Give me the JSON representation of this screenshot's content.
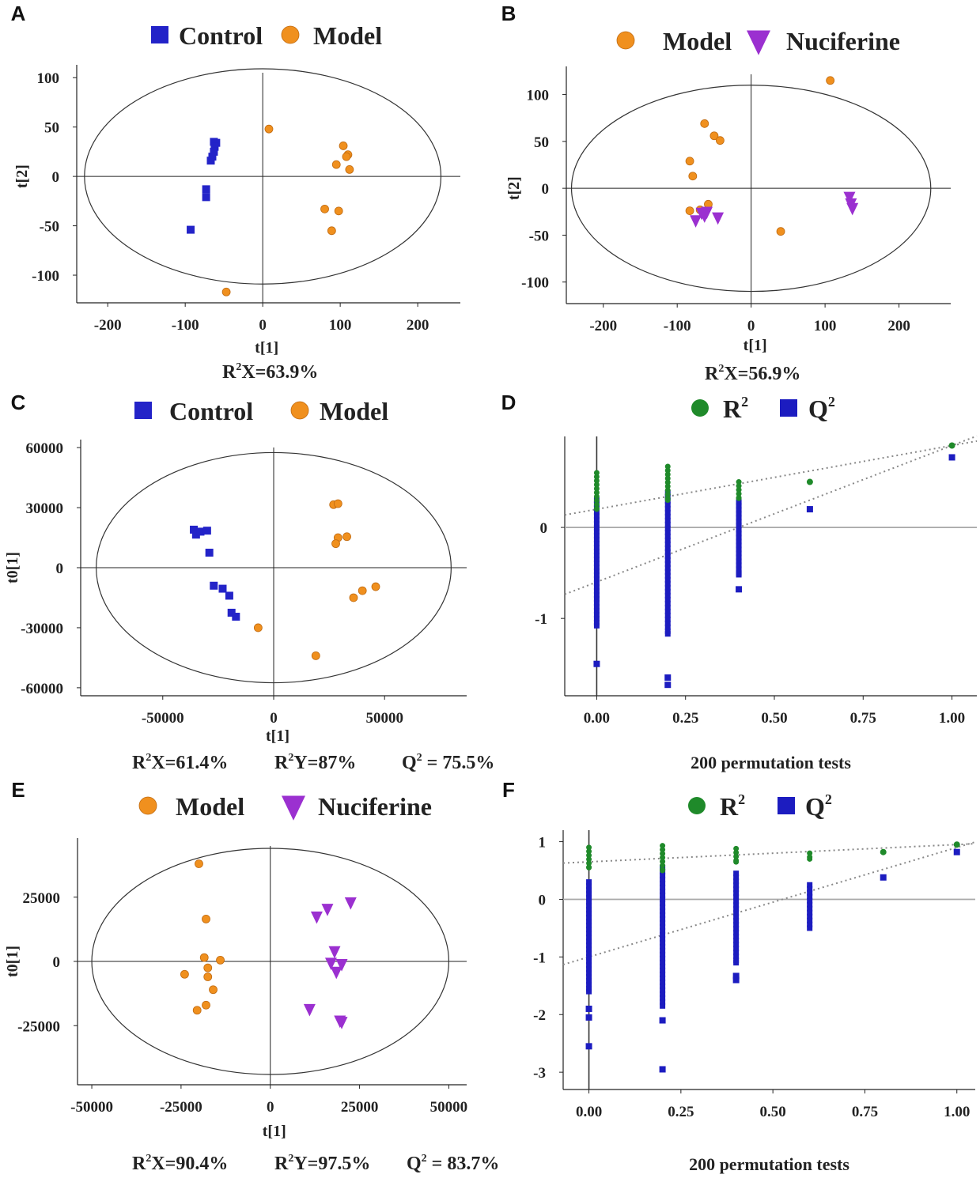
{
  "colors": {
    "control": "#2323c8",
    "model": "#f0901e",
    "nuciferine": "#9b30d0",
    "r2": "#1f8a2a",
    "q2": "#1c1cc0",
    "axis": "#222222",
    "gridline": "#a8a8a8",
    "dotted": "#888888"
  },
  "chart_data": [
    {
      "panel": "A",
      "type": "scatter",
      "legend": [
        {
          "label": "Control",
          "marker": "square",
          "color_key": "control"
        },
        {
          "label": "Model",
          "marker": "circle",
          "color_key": "model"
        }
      ],
      "xlabel": "t[1]",
      "ylabel": "t[2]",
      "xlim": [
        -240,
        255
      ],
      "ylim": [
        -128,
        113
      ],
      "xticks": [
        -200,
        -100,
        0,
        100,
        200
      ],
      "xtick_labels": [
        "-200",
        "-100",
        "0",
        "100",
        "200"
      ],
      "yticks": [
        100,
        50,
        0,
        -50,
        -100
      ],
      "ytick_labels": [
        "100",
        "50",
        "0",
        "-50",
        "-100"
      ],
      "ellipse": {
        "rx": 230,
        "ry": 109
      },
      "caption": [
        {
          "text": "R",
          "sup": "2",
          "rest": "X=63.9%"
        }
      ],
      "series": [
        {
          "name": "Control",
          "marker": "square",
          "color_key": "control",
          "points": [
            [
              -63,
              35
            ],
            [
              -60,
              34
            ],
            [
              -62,
              30
            ],
            [
              -63,
              25
            ],
            [
              -65,
              20
            ],
            [
              -67,
              16
            ],
            [
              -73,
              -13
            ],
            [
              -73,
              -21
            ],
            [
              -93,
              -54
            ]
          ]
        },
        {
          "name": "Model",
          "marker": "circle",
          "color_key": "model",
          "points": [
            [
              8,
              48
            ],
            [
              104,
              31
            ],
            [
              110,
              22
            ],
            [
              108,
              20
            ],
            [
              95,
              12
            ],
            [
              112,
              7
            ],
            [
              80,
              -33
            ],
            [
              98,
              -35
            ],
            [
              89,
              -55
            ],
            [
              -47,
              -117
            ]
          ]
        }
      ]
    },
    {
      "panel": "B",
      "type": "scatter",
      "legend": [
        {
          "label": "Model",
          "marker": "circle",
          "color_key": "model"
        },
        {
          "label": "Nuciferine",
          "marker": "triangle",
          "color_key": "nuciferine"
        }
      ],
      "xlabel": "t[1]",
      "ylabel": "t[2]",
      "xlim": [
        -250,
        270
      ],
      "ylim": [
        -123,
        130
      ],
      "xticks": [
        -200,
        -100,
        0,
        100,
        200
      ],
      "xtick_labels": [
        "-200",
        "-100",
        "0",
        "100",
        "200"
      ],
      "yticks": [
        100,
        50,
        0,
        -50,
        -100
      ],
      "ytick_labels": [
        "100",
        "50",
        "0",
        "-50",
        "-100"
      ],
      "ellipse": {
        "rx": 243,
        "ry": 110
      },
      "caption": [
        {
          "text": "R",
          "sup": "2",
          "rest": "X=56.9%"
        }
      ],
      "series": [
        {
          "name": "Model",
          "marker": "circle",
          "color_key": "model",
          "points": [
            [
              107,
              115
            ],
            [
              -63,
              69
            ],
            [
              -50,
              56
            ],
            [
              -42,
              51
            ],
            [
              -83,
              29
            ],
            [
              -79,
              13
            ],
            [
              -58,
              -17
            ],
            [
              -83,
              -24
            ],
            [
              -69,
              -23
            ],
            [
              40,
              -46
            ]
          ]
        },
        {
          "name": "Nuciferine",
          "marker": "triangle",
          "color_key": "nuciferine",
          "points": [
            [
              133,
              -9
            ],
            [
              135,
              -16
            ],
            [
              137,
              -21
            ],
            [
              -60,
              -25
            ],
            [
              -67,
              -26
            ],
            [
              -45,
              -31
            ],
            [
              -75,
              -34
            ],
            [
              -63,
              -29
            ]
          ]
        }
      ]
    },
    {
      "panel": "C",
      "type": "scatter",
      "legend": [
        {
          "label": "Control",
          "marker": "square",
          "color_key": "control"
        },
        {
          "label": "Model",
          "marker": "circle",
          "color_key": "model"
        }
      ],
      "xlabel": "t[1]",
      "ylabel": "t0[1]",
      "xlim": [
        -87000,
        87000
      ],
      "ylim": [
        -64000,
        64000
      ],
      "xticks": [
        -50000,
        0,
        50000
      ],
      "xtick_labels": [
        "-50000",
        "0",
        "50000"
      ],
      "yticks": [
        60000,
        30000,
        0,
        -30000,
        -60000
      ],
      "ytick_labels": [
        "60000",
        "30000",
        "0",
        "-30000",
        "-60000"
      ],
      "ellipse": {
        "rx": 80000,
        "ry": 57500
      },
      "caption": [
        {
          "text": "R",
          "sup": "2",
          "rest": "X=61.4%"
        },
        {
          "text": "R",
          "sup": "2",
          "rest": "Y=87%"
        },
        {
          "text": "Q",
          "sup": "2",
          "rest": " = 75.5%"
        }
      ],
      "series": [
        {
          "name": "Control",
          "marker": "square",
          "color_key": "control",
          "points": [
            [
              -36000,
              19000
            ],
            [
              -35000,
              16500
            ],
            [
              -33000,
              18000
            ],
            [
              -30000,
              18500
            ],
            [
              -29000,
              7500
            ],
            [
              -27000,
              -9000
            ],
            [
              -23000,
              -10500
            ],
            [
              -20000,
              -14000
            ],
            [
              -19000,
              -22500
            ],
            [
              -17000,
              -24500
            ]
          ]
        },
        {
          "name": "Model",
          "marker": "circle",
          "color_key": "model",
          "points": [
            [
              27000,
              31500
            ],
            [
              29000,
              32000
            ],
            [
              29000,
              15000
            ],
            [
              33000,
              15500
            ],
            [
              28000,
              12000
            ],
            [
              46000,
              -9500
            ],
            [
              40000,
              -11500
            ],
            [
              36000,
              -15000
            ],
            [
              -7000,
              -30000
            ],
            [
              19000,
              -44000
            ]
          ]
        }
      ]
    },
    {
      "panel": "D",
      "type": "scatter",
      "legend": [
        {
          "label": "R",
          "sup": "2",
          "marker": "circle",
          "color_key": "r2"
        },
        {
          "label": "Q",
          "sup": "2",
          "marker": "square",
          "color_key": "q2"
        }
      ],
      "xlabel": "200 permutation tests",
      "xlim": [
        -0.09,
        1.07
      ],
      "ylim": [
        -1.85,
        1.0
      ],
      "xticks": [
        0.0,
        0.25,
        0.5,
        0.75,
        1.0
      ],
      "xtick_labels": [
        "0.00",
        "0.25",
        "0.50",
        "0.75",
        "1.00"
      ],
      "yticks": [
        0,
        -1
      ],
      "ytick_labels": [
        "0",
        "-1"
      ],
      "regression": {
        "r2": {
          "intercept": 0.2,
          "slope": 0.7
        },
        "q2": {
          "intercept": -0.6,
          "slope": 1.5
        }
      },
      "series": [
        {
          "name": "R2",
          "marker": "circle",
          "color_key": "r2",
          "columns": [
            {
              "x": 0,
              "min": 0.2,
              "max": 0.6
            },
            {
              "x": 0.2,
              "min": 0.3,
              "max": 0.67
            },
            {
              "x": 0.4,
              "min": 0.32,
              "max": 0.5
            }
          ],
          "points": [
            [
              0.6,
              0.5
            ],
            [
              1.0,
              0.9
            ]
          ]
        },
        {
          "name": "Q2",
          "marker": "square",
          "color_key": "q2",
          "columns": [
            {
              "x": 0,
              "min": -1.08,
              "max": 0.3
            },
            {
              "x": 0.2,
              "min": -1.17,
              "max": 0.38
            },
            {
              "x": 0.4,
              "min": -0.52,
              "max": 0.28
            }
          ],
          "points": [
            [
              0,
              -1.5
            ],
            [
              0.2,
              -1.65
            ],
            [
              0.2,
              -1.73
            ],
            [
              0.4,
              -0.68
            ],
            [
              0.6,
              0.2
            ],
            [
              1.0,
              0.77
            ]
          ]
        }
      ]
    },
    {
      "panel": "E",
      "type": "scatter",
      "legend": [
        {
          "label": "Model",
          "marker": "circle",
          "color_key": "model"
        },
        {
          "label": "Nuciferine",
          "marker": "triangle",
          "color_key": "nuciferine"
        }
      ],
      "xlabel": "t[1]",
      "ylabel": "t0[1]",
      "xlim": [
        -54000,
        55000
      ],
      "ylim": [
        -48000,
        48000
      ],
      "xticks": [
        -50000,
        -25000,
        0,
        25000,
        50000
      ],
      "xtick_labels": [
        "-50000",
        "-25000",
        "0",
        "25000",
        "50000"
      ],
      "yticks": [
        25000,
        0,
        -25000
      ],
      "ytick_labels": [
        "25000",
        "0",
        "-25000"
      ],
      "ellipse": {
        "rx": 50000,
        "ry": 44000
      },
      "caption": [
        {
          "text": "R",
          "sup": "2",
          "rest": "X=90.4%"
        },
        {
          "text": "R",
          "sup": "2",
          "rest": "Y=97.5%"
        },
        {
          "text": "Q",
          "sup": "2",
          "rest": " = 83.7%"
        }
      ],
      "series": [
        {
          "name": "Model",
          "marker": "circle",
          "color_key": "model",
          "points": [
            [
              -20000,
              38000
            ],
            [
              -18000,
              16500
            ],
            [
              -18500,
              1500
            ],
            [
              -14000,
              500
            ],
            [
              -17500,
              -2500
            ],
            [
              -24000,
              -5000
            ],
            [
              -17500,
              -6000
            ],
            [
              -16000,
              -11000
            ],
            [
              -18000,
              -17000
            ],
            [
              -20500,
              -19000
            ]
          ]
        },
        {
          "name": "Nuciferine",
          "marker": "triangle",
          "color_key": "nuciferine",
          "points": [
            [
              22500,
              23000
            ],
            [
              16000,
              20500
            ],
            [
              13000,
              17500
            ],
            [
              18000,
              4000
            ],
            [
              17000,
              -500
            ],
            [
              20000,
              -1000
            ],
            [
              18500,
              -4000
            ],
            [
              11000,
              -18500
            ],
            [
              19500,
              -23000
            ],
            [
              20000,
              -23500
            ]
          ]
        }
      ]
    },
    {
      "panel": "F",
      "type": "scatter",
      "legend": [
        {
          "label": "R",
          "sup": "2",
          "marker": "circle",
          "color_key": "r2"
        },
        {
          "label": "Q",
          "sup": "2",
          "marker": "square",
          "color_key": "q2"
        }
      ],
      "xlabel": "200 permutation tests",
      "xlim": [
        -0.07,
        1.05
      ],
      "ylim": [
        -3.3,
        1.2
      ],
      "xticks": [
        0.0,
        0.25,
        0.5,
        0.75,
        1.0
      ],
      "xtick_labels": [
        "0.00",
        "0.25",
        "0.50",
        "0.75",
        "1.00"
      ],
      "yticks": [
        1,
        0,
        -1,
        -2,
        -3
      ],
      "ytick_labels": [
        "1",
        "0",
        "-1",
        "-2",
        "-3"
      ],
      "regression": {
        "r2": {
          "intercept": 0.65,
          "slope": 0.3
        },
        "q2": {
          "intercept": -1.0,
          "slope": 1.9
        }
      },
      "series": [
        {
          "name": "R2",
          "marker": "circle",
          "color_key": "r2",
          "columns": [
            {
              "x": 0,
              "min": 0.55,
              "max": 0.9
            },
            {
              "x": 0.2,
              "min": 0.5,
              "max": 0.93
            },
            {
              "x": 0.4,
              "min": 0.65,
              "max": 0.88
            },
            {
              "x": 0.6,
              "min": 0.7,
              "max": 0.8
            }
          ],
          "points": [
            [
              0.8,
              0.82
            ],
            [
              1.0,
              0.95
            ]
          ]
        },
        {
          "name": "Q2",
          "marker": "square",
          "color_key": "q2",
          "columns": [
            {
              "x": 0,
              "min": -1.6,
              "max": 0.3
            },
            {
              "x": 0.2,
              "min": -1.85,
              "max": 0.55
            },
            {
              "x": 0.4,
              "min": -1.1,
              "max": 0.45
            },
            {
              "x": 0.6,
              "min": -0.5,
              "max": 0.25
            }
          ],
          "points": [
            [
              0,
              -1.9
            ],
            [
              0,
              -2.05
            ],
            [
              0,
              -2.55
            ],
            [
              0.2,
              -2.1
            ],
            [
              0.2,
              -2.95
            ],
            [
              0.4,
              -1.33
            ],
            [
              0.4,
              -1.4
            ],
            [
              0.8,
              0.38
            ],
            [
              1.0,
              0.82
            ]
          ]
        }
      ]
    }
  ]
}
